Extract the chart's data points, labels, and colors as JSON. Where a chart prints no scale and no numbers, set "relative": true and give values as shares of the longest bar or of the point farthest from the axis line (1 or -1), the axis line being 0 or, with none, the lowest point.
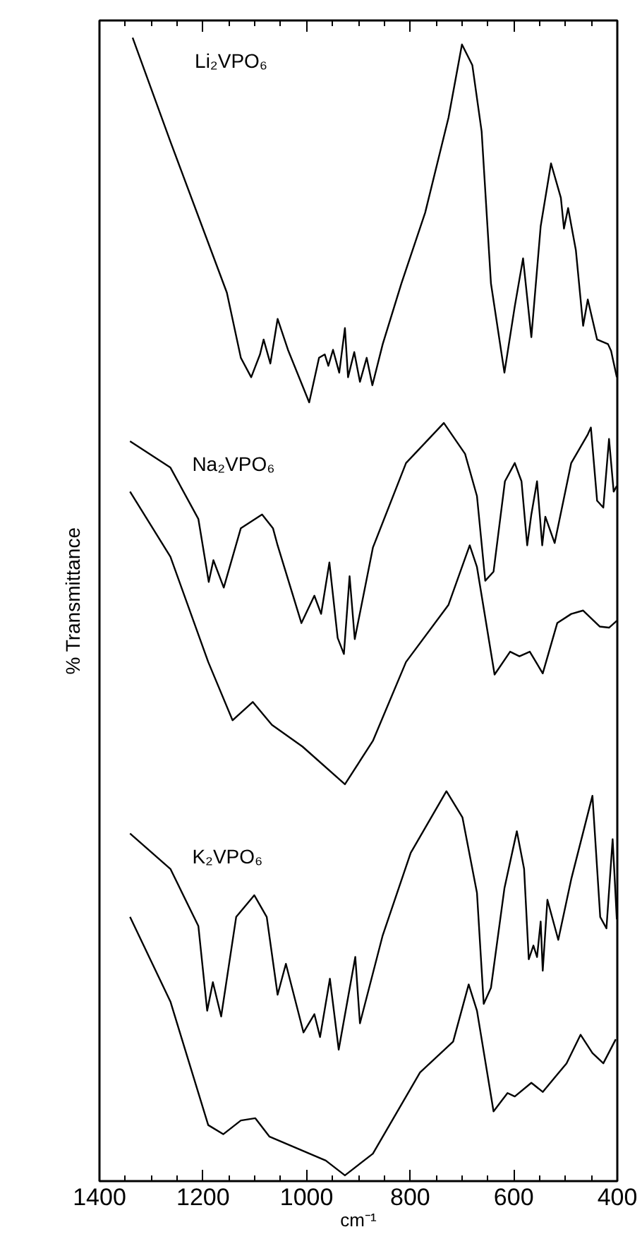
{
  "chart_data": {
    "type": "line",
    "xlabel": "cm⁻¹",
    "ylabel": "% Transmittance",
    "relative": true,
    "xlim": [
      1400,
      400
    ],
    "xticks": [
      1400,
      1200,
      1000,
      800,
      600,
      400
    ],
    "tick_labels": "x",
    "grid": false,
    "marker": "none",
    "line_style": "solid",
    "series": [
      {
        "name": "Li₂VPO₆",
        "color": "#000000",
        "x": [
          1336,
          1263,
          1154,
          1127,
          1107,
          1090,
          1083,
          1070,
          1056,
          1036,
          995,
          976,
          965,
          958,
          949,
          937,
          926,
          920,
          908,
          897,
          884,
          873,
          853,
          817,
          771,
          726,
          700,
          680,
          662,
          644,
          618,
          598,
          582,
          566,
          548,
          528,
          509,
          503,
          495,
          480,
          466,
          457,
          439,
          418,
          412,
          401
        ],
        "values": [
          1.0,
          0.909,
          0.777,
          0.72,
          0.703,
          0.723,
          0.736,
          0.715,
          0.754,
          0.727,
          0.681,
          0.72,
          0.723,
          0.713,
          0.727,
          0.707,
          0.746,
          0.703,
          0.725,
          0.699,
          0.72,
          0.696,
          0.732,
          0.785,
          0.847,
          0.93,
          0.994,
          0.976,
          0.918,
          0.785,
          0.707,
          0.765,
          0.807,
          0.738,
          0.835,
          0.89,
          0.86,
          0.833,
          0.851,
          0.814,
          0.748,
          0.771,
          0.736,
          0.732,
          0.726,
          0.703
        ]
      },
      {
        "name": "Na₂VPO₆",
        "color": "#000000",
        "x": [
          1341,
          1263,
          1209,
          1189,
          1180,
          1160,
          1127,
          1086,
          1065,
          1056,
          1010,
          985,
          972,
          956,
          940,
          928,
          917,
          907,
          872,
          808,
          735,
          694,
          671,
          655,
          639,
          617,
          598,
          585,
          574,
          566,
          555,
          545,
          539,
          521,
          489,
          457,
          451,
          439,
          427,
          416,
          407,
          401
        ],
        "values": [
          0.647,
          0.624,
          0.579,
          0.524,
          0.543,
          0.519,
          0.571,
          0.583,
          0.571,
          0.556,
          0.488,
          0.512,
          0.496,
          0.541,
          0.475,
          0.461,
          0.529,
          0.474,
          0.554,
          0.628,
          0.663,
          0.636,
          0.599,
          0.525,
          0.533,
          0.612,
          0.628,
          0.612,
          0.556,
          0.583,
          0.612,
          0.556,
          0.581,
          0.558,
          0.628,
          0.653,
          0.659,
          0.595,
          0.589,
          0.649,
          0.603,
          0.608
        ]
      },
      {
        "color": "#000000",
        "x": [
          1341,
          1263,
          1190,
          1143,
          1104,
          1067,
          1008,
          926,
          872,
          808,
          726,
          685,
          671,
          637,
          607,
          589,
          569,
          544,
          516,
          489,
          466,
          434,
          416,
          401
        ],
        "values": [
          0.603,
          0.546,
          0.454,
          0.403,
          0.419,
          0.399,
          0.38,
          0.347,
          0.385,
          0.454,
          0.504,
          0.556,
          0.537,
          0.443,
          0.463,
          0.459,
          0.463,
          0.444,
          0.488,
          0.496,
          0.499,
          0.485,
          0.484,
          0.49
        ]
      },
      {
        "name": "K₂VPO₆",
        "color": "#000000",
        "x": [
          1341,
          1263,
          1209,
          1192,
          1181,
          1165,
          1136,
          1101,
          1077,
          1056,
          1040,
          1006,
          985,
          974,
          955,
          938,
          906,
          897,
          853,
          799,
          730,
          699,
          671,
          658,
          644,
          618,
          594,
          580,
          571,
          562,
          555,
          548,
          544,
          535,
          514,
          489,
          448,
          433,
          421,
          409,
          401
        ],
        "values": [
          0.304,
          0.273,
          0.223,
          0.149,
          0.174,
          0.144,
          0.231,
          0.25,
          0.231,
          0.163,
          0.19,
          0.13,
          0.146,
          0.126,
          0.177,
          0.115,
          0.196,
          0.138,
          0.215,
          0.287,
          0.341,
          0.318,
          0.252,
          0.155,
          0.169,
          0.256,
          0.306,
          0.273,
          0.194,
          0.206,
          0.196,
          0.227,
          0.184,
          0.246,
          0.211,
          0.264,
          0.337,
          0.231,
          0.221,
          0.299,
          0.229
        ]
      },
      {
        "color": "#000000",
        "x": [
          1341,
          1263,
          1190,
          1161,
          1127,
          1099,
          1072,
          963,
          926,
          872,
          781,
          717,
          687,
          671,
          639,
          612,
          598,
          566,
          544,
          498,
          471,
          448,
          427,
          403
        ],
        "values": [
          0.231,
          0.157,
          0.049,
          0.041,
          0.053,
          0.055,
          0.039,
          0.018,
          0.005,
          0.024,
          0.095,
          0.122,
          0.172,
          0.149,
          0.061,
          0.077,
          0.074,
          0.086,
          0.078,
          0.103,
          0.128,
          0.112,
          0.103,
          0.124
        ]
      }
    ]
  }
}
